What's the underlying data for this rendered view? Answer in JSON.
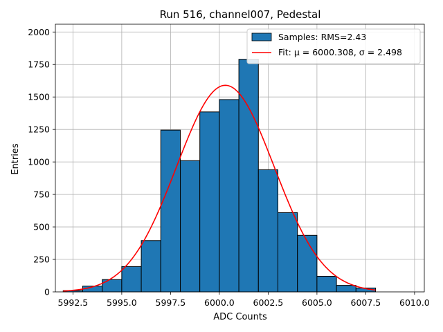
{
  "chart_data": {
    "type": "bar",
    "title": "Run 516, channel007, Pedestal",
    "xlabel": "ADC Counts",
    "ylabel": "Entries",
    "xlim": [
      5991.6,
      6010.5
    ],
    "ylim": [
      0,
      2060
    ],
    "xticks": [
      5992.5,
      5995.0,
      5997.5,
      6000.0,
      6002.5,
      6005.0,
      6007.5,
      6010.0
    ],
    "xtick_labels": [
      "5992.5",
      "5995.0",
      "5997.5",
      "6000.0",
      "6002.5",
      "6005.0",
      "6007.5",
      "6010.0"
    ],
    "yticks": [
      0,
      250,
      500,
      750,
      1000,
      1250,
      1500,
      1750,
      2000
    ],
    "ytick_labels": [
      "0",
      "250",
      "500",
      "750",
      "1000",
      "1250",
      "1500",
      "1750",
      "2000"
    ],
    "grid": true,
    "legend_position": "top-right",
    "histogram": {
      "name": "Samples: RMS=2.43",
      "color": "#1f77b4",
      "edge_color": "#000000",
      "bins": [
        {
          "x0": 5992.0,
          "x1": 5993.0,
          "value": 10
        },
        {
          "x0": 5993.0,
          "x1": 5994.0,
          "value": 45
        },
        {
          "x0": 5994.0,
          "x1": 5995.0,
          "value": 95
        },
        {
          "x0": 5995.0,
          "x1": 5996.0,
          "value": 195
        },
        {
          "x0": 5996.0,
          "x1": 5997.0,
          "value": 395
        },
        {
          "x0": 5997.0,
          "x1": 5998.0,
          "value": 1245
        },
        {
          "x0": 5998.0,
          "x1": 5999.0,
          "value": 1010
        },
        {
          "x0": 5999.0,
          "x1": 6000.0,
          "value": 1385
        },
        {
          "x0": 6000.0,
          "x1": 6001.0,
          "value": 1480
        },
        {
          "x0": 6001.0,
          "x1": 6002.0,
          "value": 1790
        },
        {
          "x0": 6002.0,
          "x1": 6003.0,
          "value": 940
        },
        {
          "x0": 6003.0,
          "x1": 6004.0,
          "value": 610
        },
        {
          "x0": 6004.0,
          "x1": 6005.0,
          "value": 435
        },
        {
          "x0": 6005.0,
          "x1": 6006.0,
          "value": 120
        },
        {
          "x0": 6006.0,
          "x1": 6007.0,
          "value": 50
        },
        {
          "x0": 6007.0,
          "x1": 6008.0,
          "value": 30
        },
        {
          "x0": 6008.0,
          "x1": 6009.0,
          "value": 0
        },
        {
          "x0": 6009.0,
          "x1": 6010.0,
          "value": 0
        }
      ]
    },
    "fit": {
      "name": "Fit: μ = 6000.308, σ = 2.498",
      "color": "#ff0000",
      "mu": 6000.308,
      "sigma": 2.498,
      "amplitude": 1590,
      "x_range": [
        5992.0,
        6008.0
      ]
    }
  }
}
